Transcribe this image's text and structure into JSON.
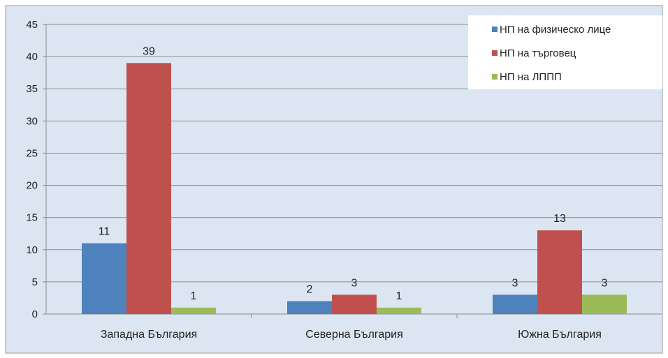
{
  "chart_data": {
    "type": "bar",
    "categories": [
      "Западна България",
      "Северна България",
      "Южна България"
    ],
    "series": [
      {
        "name": "НП на физическо лице",
        "values": [
          11,
          2,
          3
        ],
        "color": "#4f81bd"
      },
      {
        "name": "НП на търговец",
        "values": [
          39,
          3,
          13
        ],
        "color": "#c0504d"
      },
      {
        "name": "НП на ЛППП",
        "values": [
          1,
          1,
          3
        ],
        "color": "#9bbb59"
      }
    ],
    "ylim": [
      0,
      45
    ],
    "yticks": [
      0,
      5,
      10,
      15,
      20,
      25,
      30,
      35,
      40,
      45
    ],
    "grid": true,
    "legend_position": "top-right",
    "plot_background": "#dce6f2",
    "title": "",
    "xlabel": "",
    "ylabel": ""
  }
}
